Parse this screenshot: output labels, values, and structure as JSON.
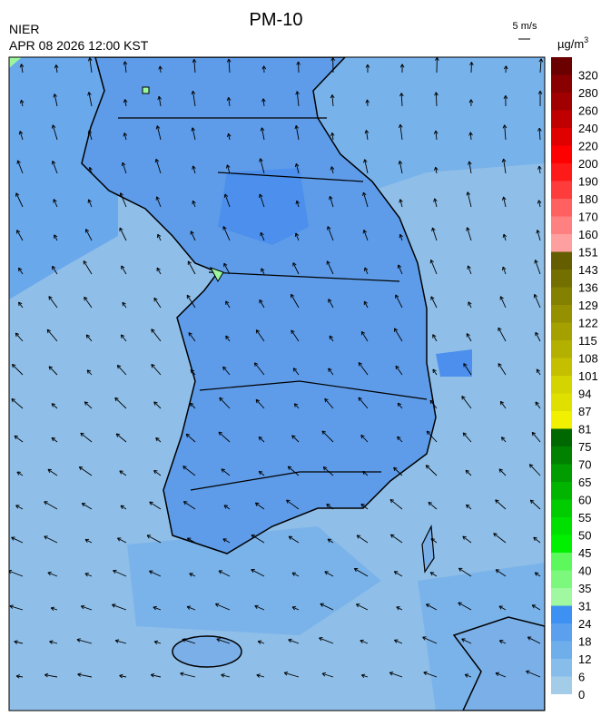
{
  "header": {
    "title": "PM-10",
    "agency": "NIER",
    "timestamp": "APR 08 2026 12:00 KST"
  },
  "wind_scale": {
    "label": "5 m/s"
  },
  "legend": {
    "unit": "µg/m",
    "unit_exponent": "3",
    "levels": [
      {
        "label": 0,
        "color": "#a3cce9"
      },
      {
        "label": 6,
        "color": "#86bdea"
      },
      {
        "label": 12,
        "color": "#6eaeea"
      },
      {
        "label": 18,
        "color": "#5aa0ee"
      },
      {
        "label": 24,
        "color": "#3c91f2"
      },
      {
        "label": 31,
        "color": "#a0f9a0"
      },
      {
        "label": 35,
        "color": "#7cf87c"
      },
      {
        "label": 40,
        "color": "#5cf85c"
      },
      {
        "label": 45,
        "color": "#00f000"
      },
      {
        "label": 50,
        "color": "#00e000"
      },
      {
        "label": 55,
        "color": "#00cc00"
      },
      {
        "label": 60,
        "color": "#00b400"
      },
      {
        "label": 65,
        "color": "#009c00"
      },
      {
        "label": 70,
        "color": "#008200"
      },
      {
        "label": 75,
        "color": "#006800"
      },
      {
        "label": 81,
        "color": "#f0f000"
      },
      {
        "label": 87,
        "color": "#e0e000"
      },
      {
        "label": 94,
        "color": "#d4d400"
      },
      {
        "label": 101,
        "color": "#c4c000"
      },
      {
        "label": 108,
        "color": "#b4b000"
      },
      {
        "label": 115,
        "color": "#a4a000"
      },
      {
        "label": 122,
        "color": "#949000"
      },
      {
        "label": 129,
        "color": "#848000"
      },
      {
        "label": 136,
        "color": "#747000"
      },
      {
        "label": 143,
        "color": "#645e00"
      },
      {
        "label": 151,
        "color": "#ffa0a0"
      },
      {
        "label": 160,
        "color": "#ff8080"
      },
      {
        "label": 170,
        "color": "#ff6060"
      },
      {
        "label": 180,
        "color": "#ff3c3c"
      },
      {
        "label": 190,
        "color": "#ff1a1a"
      },
      {
        "label": 200,
        "color": "#ff0000"
      },
      {
        "label": 220,
        "color": "#e00000"
      },
      {
        "label": 240,
        "color": "#c00000"
      },
      {
        "label": 260,
        "color": "#a00000"
      },
      {
        "label": 280,
        "color": "#880000"
      },
      {
        "label": 320,
        "color": "#6a0000"
      }
    ]
  }
}
